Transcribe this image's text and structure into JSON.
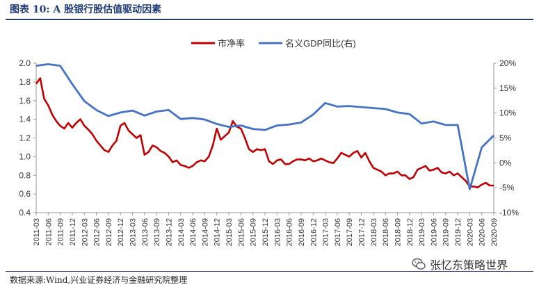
{
  "figure": {
    "title": "图表 10:  A 股银行股估值驱动因素",
    "source": "数据来源:Wind,兴业证券经济与金融研究院整理",
    "watermark": "张忆东策略世界",
    "watermark_icon": "wechat-icon"
  },
  "chart_data": {
    "type": "line",
    "legend_position": "top-center",
    "grid": false,
    "xlabel": "",
    "ylabel": "",
    "x_ticks": [
      "2011-03",
      "2011-06",
      "2011-09",
      "2011-12",
      "2012-03",
      "2012-06",
      "2012-09",
      "2012-12",
      "2013-03",
      "2013-06",
      "2013-09",
      "2013-12",
      "2014-03",
      "2014-06",
      "2014-09",
      "2014-12",
      "2015-03",
      "2015-06",
      "2015-09",
      "2015-12",
      "2016-03",
      "2016-06",
      "2016-09",
      "2016-12",
      "2017-03",
      "2017-06",
      "2017-09",
      "2017-12",
      "2018-03",
      "2018-06",
      "2018-09",
      "2018-12",
      "2019-03",
      "2019-06",
      "2019-09",
      "2019-12",
      "2020-03",
      "2020-06",
      "2020-09"
    ],
    "y_left": {
      "min": 0.4,
      "max": 2.0,
      "ticks": [
        "2.0",
        "1.8",
        "1.6",
        "1.4",
        "1.2",
        "1.0",
        "0.8",
        "0.6",
        "0.4"
      ]
    },
    "y_right": {
      "min": -10,
      "max": 20,
      "ticks": [
        "20%",
        "15%",
        "10%",
        "5%",
        "0%",
        "-5%",
        "-10%"
      ]
    },
    "series": [
      {
        "name": "市净率",
        "axis": "left",
        "color": "#c00000",
        "points": [
          [
            "2011-03",
            1.78
          ],
          [
            "2011-04",
            1.84
          ],
          [
            "2011-05",
            1.62
          ],
          [
            "2011-06",
            1.55
          ],
          [
            "2011-07",
            1.45
          ],
          [
            "2011-08",
            1.38
          ],
          [
            "2011-09",
            1.33
          ],
          [
            "2011-10",
            1.3
          ],
          [
            "2011-11",
            1.36
          ],
          [
            "2011-12",
            1.31
          ],
          [
            "2012-01",
            1.36
          ],
          [
            "2012-02",
            1.4
          ],
          [
            "2012-03",
            1.33
          ],
          [
            "2012-04",
            1.29
          ],
          [
            "2012-05",
            1.24
          ],
          [
            "2012-06",
            1.17
          ],
          [
            "2012-07",
            1.12
          ],
          [
            "2012-08",
            1.07
          ],
          [
            "2012-09",
            1.05
          ],
          [
            "2012-10",
            1.12
          ],
          [
            "2012-11",
            1.17
          ],
          [
            "2012-12",
            1.33
          ],
          [
            "2013-01",
            1.36
          ],
          [
            "2013-02",
            1.28
          ],
          [
            "2013-03",
            1.24
          ],
          [
            "2013-04",
            1.2
          ],
          [
            "2013-05",
            1.23
          ],
          [
            "2013-06",
            1.02
          ],
          [
            "2013-07",
            1.05
          ],
          [
            "2013-08",
            1.12
          ],
          [
            "2013-09",
            1.1
          ],
          [
            "2013-10",
            1.06
          ],
          [
            "2013-11",
            1.04
          ],
          [
            "2013-12",
            1.0
          ],
          [
            "2014-01",
            0.94
          ],
          [
            "2014-02",
            0.96
          ],
          [
            "2014-03",
            0.91
          ],
          [
            "2014-04",
            0.9
          ],
          [
            "2014-05",
            0.88
          ],
          [
            "2014-06",
            0.9
          ],
          [
            "2014-07",
            0.94
          ],
          [
            "2014-08",
            0.96
          ],
          [
            "2014-09",
            0.95
          ],
          [
            "2014-10",
            1.0
          ],
          [
            "2014-11",
            1.12
          ],
          [
            "2014-12",
            1.3
          ],
          [
            "2015-01",
            1.18
          ],
          [
            "2015-02",
            1.22
          ],
          [
            "2015-03",
            1.26
          ],
          [
            "2015-04",
            1.38
          ],
          [
            "2015-05",
            1.32
          ],
          [
            "2015-06",
            1.3
          ],
          [
            "2015-07",
            1.2
          ],
          [
            "2015-08",
            1.08
          ],
          [
            "2015-09",
            1.05
          ],
          [
            "2015-10",
            1.08
          ],
          [
            "2015-11",
            1.07
          ],
          [
            "2015-12",
            1.08
          ],
          [
            "2016-01",
            0.95
          ],
          [
            "2016-02",
            0.92
          ],
          [
            "2016-03",
            0.96
          ],
          [
            "2016-04",
            0.97
          ],
          [
            "2016-05",
            0.92
          ],
          [
            "2016-06",
            0.92
          ],
          [
            "2016-07",
            0.95
          ],
          [
            "2016-08",
            0.97
          ],
          [
            "2016-09",
            0.97
          ],
          [
            "2016-10",
            0.96
          ],
          [
            "2016-11",
            0.98
          ],
          [
            "2016-12",
            0.95
          ],
          [
            "2017-01",
            0.96
          ],
          [
            "2017-02",
            0.98
          ],
          [
            "2017-03",
            0.96
          ],
          [
            "2017-04",
            0.94
          ],
          [
            "2017-05",
            0.93
          ],
          [
            "2017-06",
            0.98
          ],
          [
            "2017-07",
            1.04
          ],
          [
            "2017-08",
            1.02
          ],
          [
            "2017-09",
            1.0
          ],
          [
            "2017-10",
            1.04
          ],
          [
            "2017-11",
            1.06
          ],
          [
            "2017-12",
            0.99
          ],
          [
            "2018-01",
            1.04
          ],
          [
            "2018-02",
            0.95
          ],
          [
            "2018-03",
            0.88
          ],
          [
            "2018-04",
            0.86
          ],
          [
            "2018-05",
            0.84
          ],
          [
            "2018-06",
            0.8
          ],
          [
            "2018-07",
            0.82
          ],
          [
            "2018-08",
            0.82
          ],
          [
            "2018-09",
            0.84
          ],
          [
            "2018-10",
            0.8
          ],
          [
            "2018-11",
            0.8
          ],
          [
            "2018-12",
            0.76
          ],
          [
            "2019-01",
            0.78
          ],
          [
            "2019-02",
            0.86
          ],
          [
            "2019-03",
            0.88
          ],
          [
            "2019-04",
            0.9
          ],
          [
            "2019-05",
            0.85
          ],
          [
            "2019-06",
            0.86
          ],
          [
            "2019-07",
            0.88
          ],
          [
            "2019-08",
            0.83
          ],
          [
            "2019-09",
            0.82
          ],
          [
            "2019-10",
            0.84
          ],
          [
            "2019-11",
            0.8
          ],
          [
            "2019-12",
            0.82
          ],
          [
            "2020-01",
            0.78
          ],
          [
            "2020-02",
            0.74
          ],
          [
            "2020-03",
            0.68
          ],
          [
            "2020-04",
            0.68
          ],
          [
            "2020-05",
            0.67
          ],
          [
            "2020-06",
            0.7
          ],
          [
            "2020-07",
            0.72
          ],
          [
            "2020-08",
            0.69
          ],
          [
            "2020-09",
            0.69
          ]
        ]
      },
      {
        "name": "名义GDP同比(右)",
        "axis": "right",
        "color": "#4472c4",
        "points": [
          [
            "2011-03",
            19.5
          ],
          [
            "2011-06",
            19.8
          ],
          [
            "2011-09",
            19.5
          ],
          [
            "2011-12",
            15.8
          ],
          [
            "2012-03",
            12.4
          ],
          [
            "2012-06",
            10.6
          ],
          [
            "2012-09",
            9.4
          ],
          [
            "2012-12",
            10.1
          ],
          [
            "2013-03",
            10.5
          ],
          [
            "2013-06",
            9.5
          ],
          [
            "2013-09",
            10.3
          ],
          [
            "2013-12",
            10.6
          ],
          [
            "2014-03",
            8.8
          ],
          [
            "2014-06",
            9.0
          ],
          [
            "2014-09",
            8.7
          ],
          [
            "2014-12",
            7.8
          ],
          [
            "2015-03",
            7.2
          ],
          [
            "2015-06",
            7.5
          ],
          [
            "2015-09",
            6.8
          ],
          [
            "2015-12",
            6.6
          ],
          [
            "2016-03",
            7.5
          ],
          [
            "2016-06",
            7.7
          ],
          [
            "2016-09",
            8.1
          ],
          [
            "2016-12",
            9.7
          ],
          [
            "2017-03",
            12.0
          ],
          [
            "2017-06",
            11.3
          ],
          [
            "2017-09",
            11.4
          ],
          [
            "2017-12",
            11.2
          ],
          [
            "2018-03",
            11.0
          ],
          [
            "2018-06",
            10.8
          ],
          [
            "2018-09",
            10.1
          ],
          [
            "2018-12",
            9.8
          ],
          [
            "2019-03",
            7.9
          ],
          [
            "2019-06",
            8.3
          ],
          [
            "2019-09",
            7.6
          ],
          [
            "2019-12",
            7.6
          ],
          [
            "2020-03",
            -5.3
          ],
          [
            "2020-06",
            3.1
          ],
          [
            "2020-09",
            5.5
          ]
        ]
      }
    ]
  }
}
